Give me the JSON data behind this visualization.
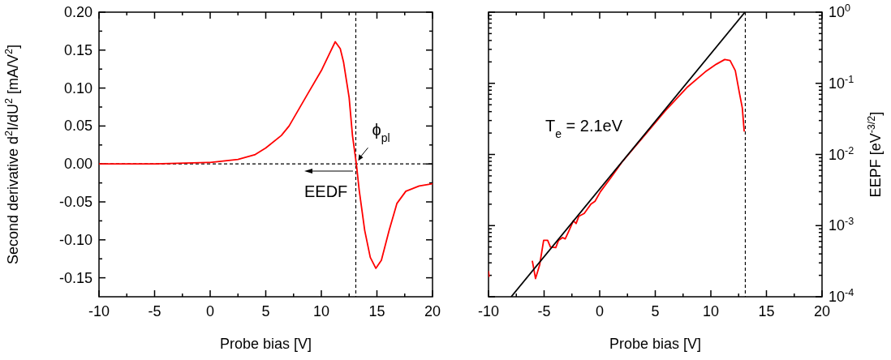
{
  "chart_data": [
    {
      "type": "line",
      "xlabel": "Probe bias [V]",
      "ylabel": "Second derivative d$^{2}$I/dU$^{2}$ [mA/V$^{2}$]",
      "xlim": [
        -10,
        20
      ],
      "xticks": [
        -10,
        {
          "value": -7.5,
          "label": null
        },
        -5,
        {
          "value": -2.5,
          "label": null
        },
        0,
        {
          "value": 2.5,
          "label": null
        },
        5,
        {
          "value": 7.5,
          "label": null
        },
        10,
        {
          "value": 12.5,
          "label": null
        },
        15,
        {
          "value": 17.5,
          "label": null
        },
        20
      ],
      "ylim": [
        -0.175,
        0.2
      ],
      "yticks": [
        {
          "value": -0.15,
          "label": "-0.15"
        },
        {
          "value": -0.125,
          "label": null
        },
        {
          "value": -0.1,
          "label": "-0.10"
        },
        {
          "value": -0.075,
          "label": null
        },
        {
          "value": -0.05,
          "label": "-0.05"
        },
        {
          "value": -0.025,
          "label": null
        },
        {
          "value": 0,
          "label": "0.00"
        },
        {
          "value": 0.025,
          "label": null
        },
        {
          "value": 0.05,
          "label": "0.05"
        },
        {
          "value": 0.075,
          "label": null
        },
        {
          "value": 0.1,
          "label": "0.10"
        },
        {
          "value": 0.125,
          "label": null
        },
        {
          "value": 0.15,
          "label": "0.15"
        },
        {
          "value": 0.175,
          "label": null
        },
        {
          "value": 0.2,
          "label": "0.20"
        }
      ],
      "series": [
        {
          "color": "#ff0000",
          "x": [
            -10,
            -5,
            0,
            2.5,
            4,
            5,
            6.4,
            7.1,
            8.8,
            10,
            10.75,
            11.25,
            11.7,
            12,
            12.5,
            12.8,
            13.15,
            13.4,
            13.9,
            14.4,
            14.9,
            15.4,
            16.1,
            16.8,
            17.6,
            18.8,
            20
          ],
          "values": [
            0,
            0,
            0.002,
            0.006,
            0.012,
            0.021,
            0.0375,
            0.05,
            0.093,
            0.123,
            0.146,
            0.161,
            0.152,
            0.134,
            0.0875,
            0.0375,
            0,
            -0.034,
            -0.0875,
            -0.123,
            -0.1375,
            -0.127,
            -0.0875,
            -0.052,
            -0.036,
            -0.029,
            -0.026
          ]
        }
      ],
      "ref_lines": [
        {
          "axis": "x",
          "value": 13.1,
          "color": "#000000",
          "line_style": "dashed"
        },
        {
          "axis": "y",
          "value": 0,
          "color": "#000000",
          "line_style": "dashed"
        }
      ],
      "annotations": [
        {
          "text": "ϕ$_{pl}$",
          "x": 13.1,
          "y": 0
        },
        "EEDF"
      ]
    },
    {
      "type": "line",
      "xlabel": "Probe bias [V]",
      "ylabel": "EEPF [eV$^{-3/2}$]",
      "log": "y",
      "xlim": [
        -10,
        20
      ],
      "xticks": [
        -10,
        {
          "value": -7.5,
          "label": null
        },
        -5,
        {
          "value": -2.5,
          "label": null
        },
        0,
        {
          "value": 2.5,
          "label": null
        },
        5,
        {
          "value": 7.5,
          "label": null
        },
        10,
        {
          "value": 12.5,
          "label": null
        },
        15,
        {
          "value": 17.5,
          "label": null
        },
        20
      ],
      "ylim": [
        0.0001,
        1
      ],
      "yticks": [
        {
          "value": 0.0001,
          "label": "10$^{-4}$"
        },
        {
          "value": 0.0002,
          "label": null
        },
        {
          "value": 0.0003,
          "label": null
        },
        {
          "value": 0.0004,
          "label": null
        },
        {
          "value": 0.0005,
          "label": null
        },
        {
          "value": 0.0006,
          "label": null
        },
        {
          "value": 0.0007,
          "label": null
        },
        {
          "value": 0.0008,
          "label": null
        },
        {
          "value": 0.0009,
          "label": null
        },
        {
          "value": 0.001,
          "label": "10$^{-3}$"
        },
        {
          "value": 0.002,
          "label": null
        },
        {
          "value": 0.003,
          "label": null
        },
        {
          "value": 0.004,
          "label": null
        },
        {
          "value": 0.005,
          "label": null
        },
        {
          "value": 0.006,
          "label": null
        },
        {
          "value": 0.007,
          "label": null
        },
        {
          "value": 0.008,
          "label": null
        },
        {
          "value": 0.009,
          "label": null
        },
        {
          "value": 0.01,
          "label": "10$^{-2}$"
        },
        {
          "value": 0.02,
          "label": null
        },
        {
          "value": 0.03,
          "label": null
        },
        {
          "value": 0.04,
          "label": null
        },
        {
          "value": 0.05,
          "label": null
        },
        {
          "value": 0.06,
          "label": null
        },
        {
          "value": 0.07,
          "label": null
        },
        {
          "value": 0.08,
          "label": null
        },
        {
          "value": 0.09,
          "label": null
        },
        {
          "value": 0.1,
          "label": "10$^{-1}$"
        },
        {
          "value": 0.2,
          "label": null
        },
        {
          "value": 0.3,
          "label": null
        },
        {
          "value": 0.4,
          "label": null
        },
        {
          "value": 0.5,
          "label": null
        },
        {
          "value": 0.6,
          "label": null
        },
        {
          "value": 0.7,
          "label": null
        },
        {
          "value": 0.8,
          "label": null
        },
        {
          "value": 0.9,
          "label": null
        },
        {
          "value": 1,
          "label": "10$^{0}$"
        }
      ],
      "series": [
        {
          "color": "#ff0000",
          "x": [
            -10,
            -9.95,
            -8,
            -6.06,
            -5.77,
            -5.4,
            -5.04,
            -4.68,
            -4.43,
            -3.95,
            -3.7,
            -3.34,
            -3.1,
            -2.73,
            -2.37,
            -2.12,
            -1.88,
            -1.39,
            -0.79,
            -0.42,
            0.07,
            1.04,
            2.0,
            3.95,
            5.9,
            7.84,
            9.5,
            10.5,
            11.25,
            11.73,
            12.2,
            12.6,
            12.83,
            13.0
          ],
          "values": [
            0.00023,
            0.00019,
            null,
            0.00032,
            0.00018,
            0.00028,
            0.00062,
            0.00062,
            0.0005,
            0.00049,
            0.00062,
            0.00068,
            0.00065,
            0.00087,
            0.00117,
            0.00107,
            0.00135,
            0.00148,
            0.002,
            0.0022,
            0.003,
            0.0048,
            0.0078,
            0.0178,
            0.041,
            0.087,
            0.145,
            0.186,
            0.216,
            0.209,
            0.151,
            0.069,
            0.045,
            0.021
          ]
        },
        {
          "color": "#000000",
          "x": [
            -7.96,
            13.07
          ],
          "values": [
            0.0001,
            1
          ]
        }
      ],
      "ref_lines": [
        {
          "axis": "x",
          "value": 13.1,
          "color": "#000000",
          "line_style": "dashed"
        }
      ],
      "annotations": [
        "T$_{e}$ = 2.1eV"
      ]
    }
  ]
}
